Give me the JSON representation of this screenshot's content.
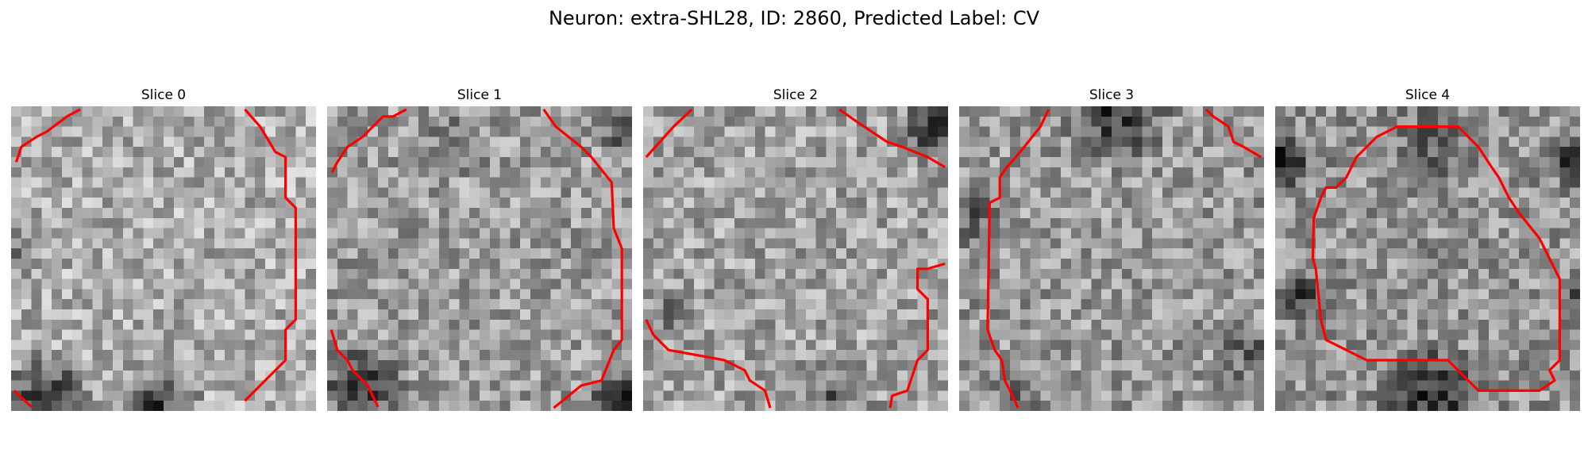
{
  "figure": {
    "title": "Neuron: extra-SHL28, ID: 2860, Predicted Label: CV"
  },
  "slices": [
    {
      "title": "Slice 0"
    },
    {
      "title": "Slice 1"
    },
    {
      "title": "Slice 2"
    },
    {
      "title": "Slice 3"
    },
    {
      "title": "Slice 4"
    }
  ],
  "colors": {
    "contour": "#ff0000",
    "background": "#ffffff"
  },
  "image": {
    "colormap": "grayscale",
    "grid": [
      30,
      30
    ]
  }
}
